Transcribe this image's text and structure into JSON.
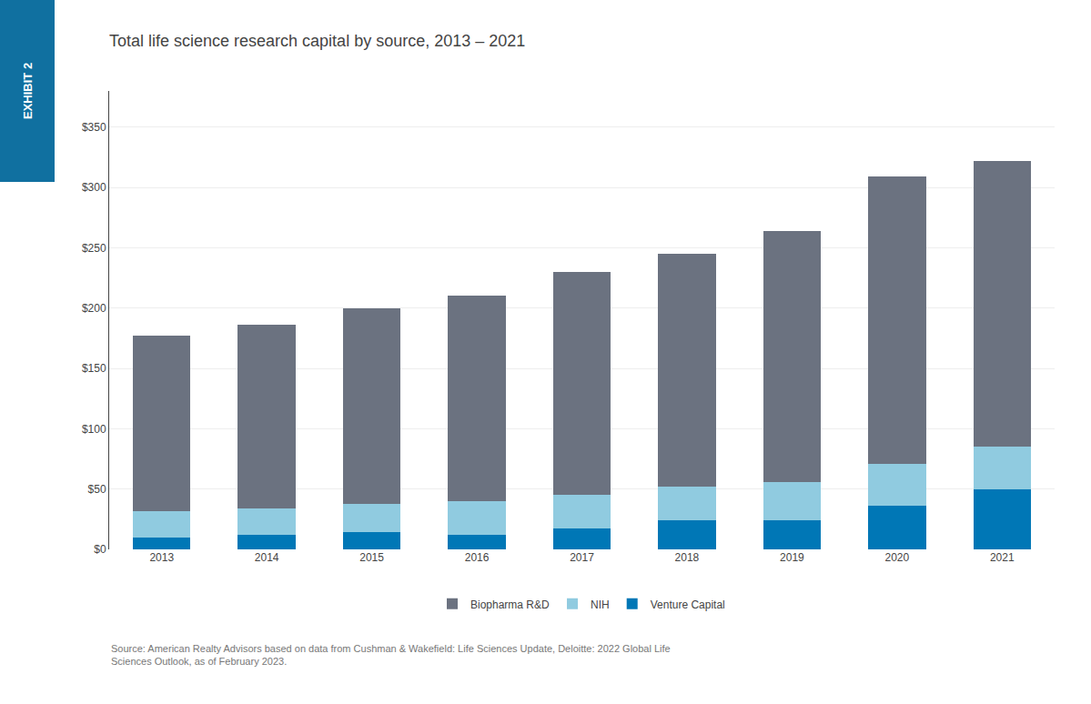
{
  "chart_data": {
    "type": "bar",
    "title": "Total life science research capital by source, 2013 – 2021",
    "categories": [
      "2013",
      "2014",
      "2015",
      "2016",
      "2017",
      "2018",
      "2019",
      "2020",
      "2021"
    ],
    "series": [
      {
        "name": "Venture Capital",
        "color": "#0077b6",
        "values": [
          10,
          12,
          14,
          12,
          17,
          24,
          24,
          36,
          50
        ]
      },
      {
        "name": "NIH",
        "color": "#90cbe0",
        "values": [
          22,
          22,
          24,
          28,
          28,
          28,
          32,
          35,
          35
        ]
      },
      {
        "name": "Biopharma R&D",
        "color": "#6b7280",
        "values": [
          145,
          152,
          162,
          170,
          185,
          193,
          208,
          238,
          237
        ]
      }
    ],
    "stacked": true,
    "ylim": [
      0,
      380
    ],
    "yticks": [
      {
        "value": 0,
        "label": "$0"
      },
      {
        "value": 50,
        "label": "$50"
      },
      {
        "value": 100,
        "label": "$100"
      },
      {
        "value": 150,
        "label": "$150"
      },
      {
        "value": 200,
        "label": "$200"
      },
      {
        "value": 250,
        "label": "$250"
      },
      {
        "value": 300,
        "label": "$300"
      },
      {
        "value": 350,
        "label": "$350"
      }
    ],
    "grid": true,
    "legend": "bottom",
    "annotations": [
      "EXHIBIT 2",
      "Source: American Realty Advisors based on data from Cushman & Wakefield: Life Sciences Update, Deloitte: 2022 Global Life\nSciences Outlook, as of February 2023."
    ]
  }
}
